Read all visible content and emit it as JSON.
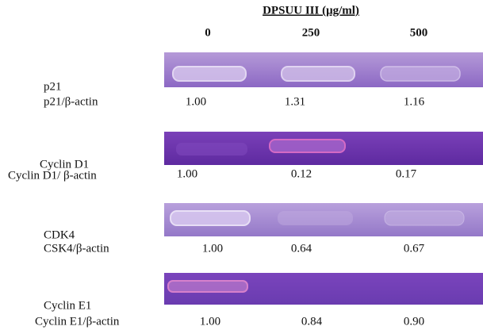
{
  "header": {
    "title": "DPSUU III (μg/ml)",
    "columns": [
      "0",
      "250",
      "500"
    ]
  },
  "rows": [
    {
      "label": "p21",
      "ratio_label": "p21/β-actin",
      "values": [
        "1.00",
        "1.31",
        "1.16"
      ]
    },
    {
      "label": "Cyclin D1",
      "ratio_label": "Cyclin D1/ β-actin",
      "values": [
        "1.00",
        "0.12",
        "0.17"
      ]
    },
    {
      "label": "CDK4",
      "ratio_label": "CSK4/β-actin",
      "values": [
        "1.00",
        "0.64",
        "0.67"
      ]
    },
    {
      "label": "Cyclin E1",
      "ratio_label": "Cyclin E1/β-actin",
      "values": [
        "1.00",
        "0.84",
        "0.90"
      ]
    }
  ]
}
